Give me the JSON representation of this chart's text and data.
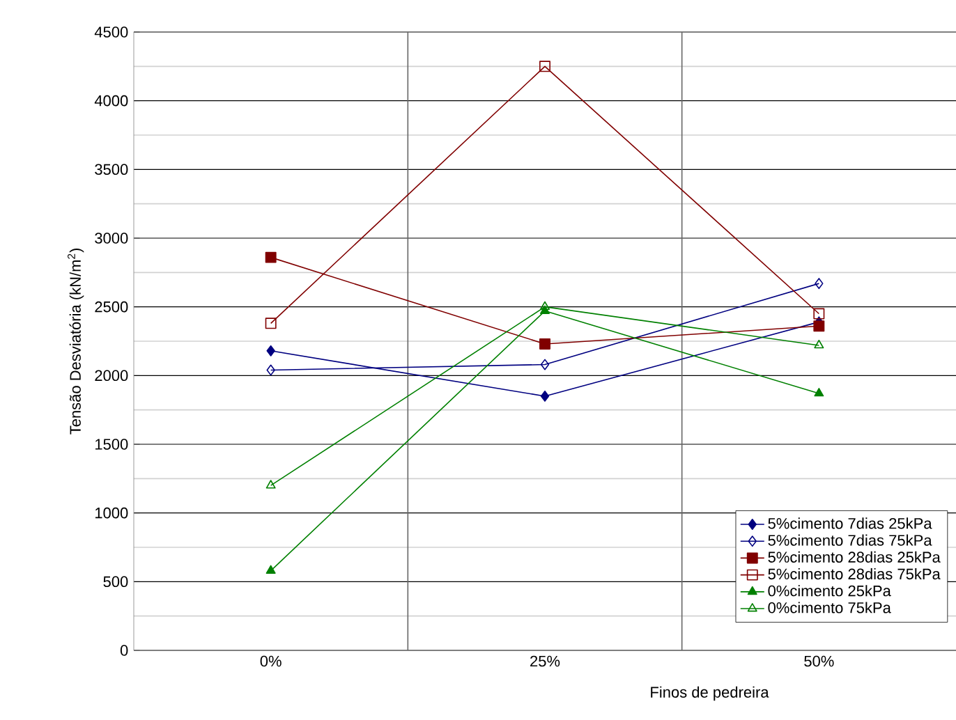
{
  "chart_data": {
    "type": "line",
    "xlabel": "Finos de pedreira",
    "ylabel": "Tensão Desviatória (kN/m$^{2}$)",
    "categories": [
      "0%",
      "25%",
      "50%"
    ],
    "ylim": [
      0,
      4500
    ],
    "yticks": [
      0,
      500,
      1000,
      1500,
      2000,
      2500,
      3000,
      3500,
      4000,
      4500
    ],
    "grid": true,
    "legend": "bottom right",
    "line_style": "solid",
    "series": [
      {
        "name": "5%cimento 7dias 25kPa",
        "color": "#000080",
        "marker": "diamond",
        "values": [
          2180,
          1850,
          2390
        ]
      },
      {
        "name": "5%cimento 7dias 75kPa",
        "color": "#000080",
        "marker": "diamond",
        "values": [
          2040,
          2080,
          2670
        ]
      },
      {
        "name": "5%cimento 28dias 25kPa",
        "color": "#800000",
        "marker": "square",
        "values": [
          2860,
          2230,
          2360
        ]
      },
      {
        "name": "5%cimento 28dias 75kPa",
        "color": "#800000",
        "marker": "square",
        "values": [
          2380,
          4250,
          2450
        ]
      },
      {
        "name": "0%cimento 25kPa",
        "color": "#008000",
        "marker": "triangle",
        "values": [
          580,
          2470,
          1870
        ]
      },
      {
        "name": "0%cimento 75kPa",
        "color": "#008000",
        "marker": "triangle",
        "values": [
          1200,
          2500,
          2220
        ]
      }
    ]
  }
}
